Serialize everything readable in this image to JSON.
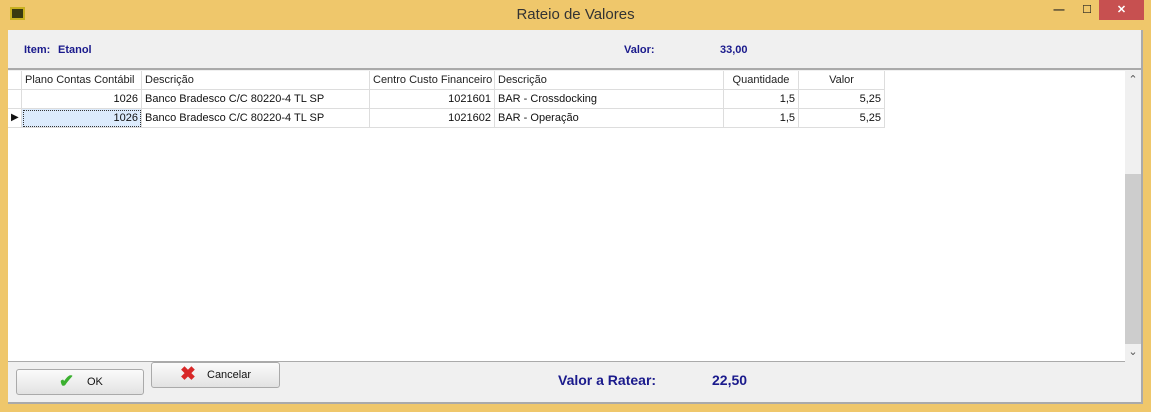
{
  "window": {
    "title": "Rateio de Valores",
    "minimize": "—",
    "maximize": "☐",
    "close": "✕"
  },
  "header": {
    "item_label": "Item:",
    "item_value": "Etanol",
    "valor_label": "Valor:",
    "valor_value": "33,00"
  },
  "grid": {
    "columns": [
      "Plano Contas Contábil",
      "Descrição",
      "Centro Custo Financeiro",
      "Descrição",
      "Quantidade",
      "Valor"
    ],
    "rows": [
      [
        "1026",
        "Banco Bradesco C/C 80220-4 TL SP",
        "1021601",
        "BAR - Crossdocking",
        "1,5",
        "5,25"
      ],
      [
        "1026",
        "Banco Bradesco C/C 80220-4 TL SP",
        "1021602",
        "BAR - Operação",
        "1,5",
        "5,25"
      ]
    ],
    "selected_row": 1,
    "scroll_up": "⌃",
    "scroll_down": "⌄"
  },
  "footer": {
    "ok": "OK",
    "cancel": "Cancelar",
    "ratear_label": "Valor a Ratear:",
    "ratear_value": "22,50"
  }
}
